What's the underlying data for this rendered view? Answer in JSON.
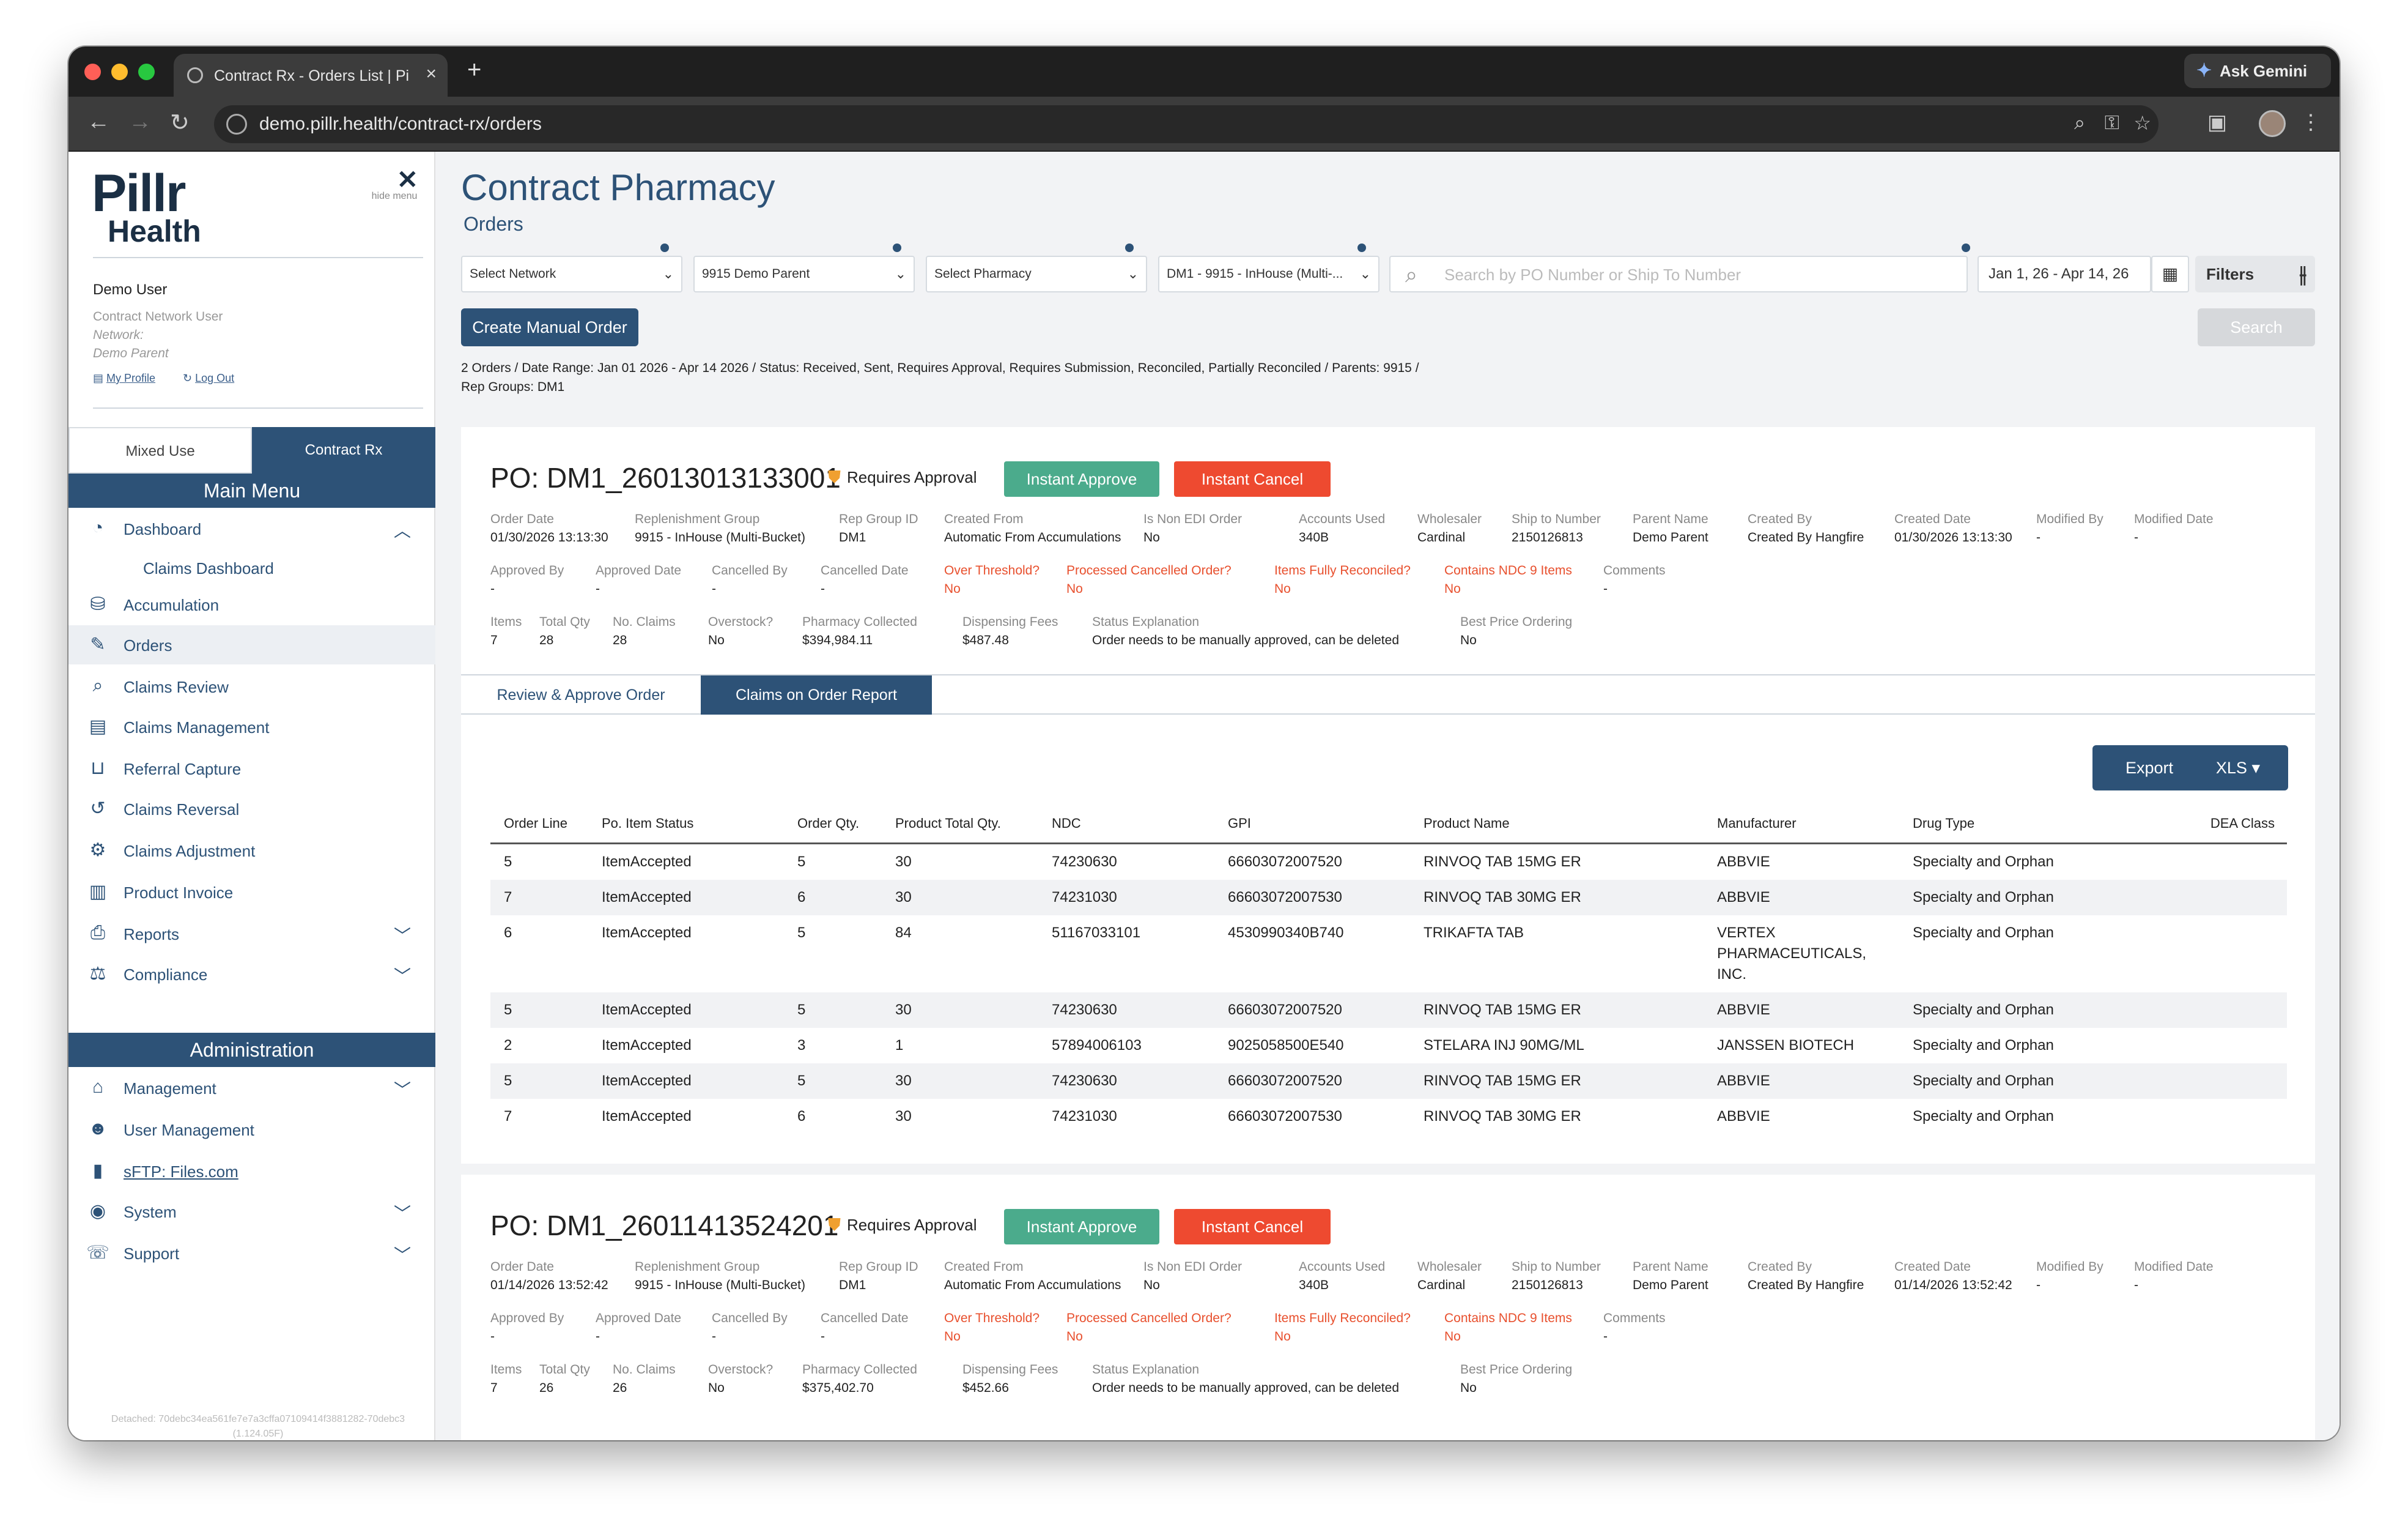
{
  "browser": {
    "tab_title": "Contract Rx - Orders List | Pillr",
    "url": "demo.pillr.health/contract-rx/orders",
    "gemini_label": "Ask Gemini"
  },
  "sidebar": {
    "logo_line1": "Pillr",
    "logo_line2": "Health",
    "hide_menu": "hide menu",
    "user_name": "Demo User",
    "user_role": "Contract Network User",
    "user_network": "Network:",
    "user_parent": "Demo Parent",
    "my_profile": "My Profile",
    "log_out": "Log Out",
    "mode_tabs": [
      "Mixed Use",
      "Contract Rx"
    ],
    "main_menu_title": "Main Menu",
    "main_menu": [
      {
        "label": "Dashboard",
        "icon": "dashboard-icon"
      },
      {
        "label": "Claims Dashboard",
        "icon": ""
      },
      {
        "label": "Accumulation",
        "icon": "accumulation-icon"
      },
      {
        "label": "Orders",
        "icon": "orders-icon"
      },
      {
        "label": "Claims Review",
        "icon": "claims-review-icon"
      },
      {
        "label": "Claims Management",
        "icon": "claims-management-icon"
      },
      {
        "label": "Referral Capture",
        "icon": "referral-capture-icon"
      },
      {
        "label": "Claims Reversal",
        "icon": "claims-reversal-icon"
      },
      {
        "label": "Claims Adjustment",
        "icon": "claims-adjustment-icon"
      },
      {
        "label": "Product Invoice",
        "icon": "product-invoice-icon"
      },
      {
        "label": "Reports",
        "icon": "reports-icon"
      },
      {
        "label": "Compliance",
        "icon": "compliance-icon"
      }
    ],
    "admin_title": "Administration",
    "admin_menu": [
      {
        "label": "Management",
        "icon": "management-icon"
      },
      {
        "label": "User Management",
        "icon": "user-management-icon"
      },
      {
        "label": "sFTP: Files.com",
        "icon": "sftp-icon"
      },
      {
        "label": "System",
        "icon": "system-icon"
      },
      {
        "label": "Support",
        "icon": "support-icon"
      }
    ],
    "footer": "Detached: 70debc34ea561fe7e7a3cffa07109414f3881282-70debc3 (1.124.05F)"
  },
  "header": {
    "title": "Contract Pharmacy",
    "subtitle": "Orders"
  },
  "filters": {
    "network": "Select Network",
    "parent": "9915 Demo Parent",
    "pharmacy": "Select Pharmacy",
    "rep_group": "DM1 - 9915 - InHouse (Multi-...",
    "search_placeholder": "Search by PO Number or Ship To Number",
    "date_range": "Jan 1, 26 - Apr 14, 26",
    "filters_label": "Filters",
    "create_label": "Create Manual Order",
    "search_label": "Search"
  },
  "summary": "2 Orders / Date Range: Jan 01 2026 - Apr 14 2026 / Status: Received, Sent, Requires Approval, Requires Submission, Reconciled, Partially Reconciled / Parents: 9915 / Rep Groups: DM1",
  "orders": [
    {
      "po": "PO: DM1_26013013133001",
      "status": "Requires Approval",
      "approve_label": "Instant Approve",
      "cancel_label": "Instant Cancel",
      "row1": [
        {
          "l": "Order Date",
          "v": "01/30/2026 13:13:30"
        },
        {
          "l": "Replenishment Group",
          "v": "9915 - InHouse (Multi-Bucket)"
        },
        {
          "l": "Rep Group ID",
          "v": "DM1"
        },
        {
          "l": "Created From",
          "v": "Automatic From Accumulations"
        },
        {
          "l": "Is Non EDI Order",
          "v": "No"
        },
        {
          "l": "Accounts Used",
          "v": "340B"
        },
        {
          "l": "Wholesaler",
          "v": "Cardinal"
        },
        {
          "l": "Ship to Number",
          "v": "2150126813"
        },
        {
          "l": "Parent Name",
          "v": "Demo Parent"
        },
        {
          "l": "Created By",
          "v": "Created By Hangfire"
        },
        {
          "l": "Created Date",
          "v": "01/30/2026 13:13:30"
        },
        {
          "l": "Modified By",
          "v": "-"
        },
        {
          "l": "Modified Date",
          "v": "-"
        }
      ],
      "row2": [
        {
          "l": "Approved By",
          "v": "-"
        },
        {
          "l": "Approved Date",
          "v": "-"
        },
        {
          "l": "Cancelled By",
          "v": "-"
        },
        {
          "l": "Cancelled Date",
          "v": "-"
        },
        {
          "l": "Over Threshold?",
          "v": "No"
        },
        {
          "l": "Processed Cancelled Order?",
          "v": "No"
        },
        {
          "l": "Items Fully Reconciled?",
          "v": "No"
        },
        {
          "l": "Contains NDC 9 Items",
          "v": "No"
        },
        {
          "l": "Comments",
          "v": "-"
        }
      ],
      "row3": [
        {
          "l": "Items",
          "v": "7"
        },
        {
          "l": "Total Qty",
          "v": "28"
        },
        {
          "l": "No. Claims",
          "v": "28"
        },
        {
          "l": "Overstock?",
          "v": "No"
        },
        {
          "l": "Pharmacy Collected",
          "v": "$394,984.11"
        },
        {
          "l": "Dispensing Fees",
          "v": "$487.48"
        },
        {
          "l": "Status Explanation",
          "v": "Order needs to be manually approved, can be deleted"
        },
        {
          "l": "Best Price Ordering",
          "v": "No"
        }
      ],
      "tabs": [
        "Review & Approve Order",
        "Claims on Order Report"
      ],
      "export_label": "Export",
      "xls_label": "XLS ▾",
      "columns": [
        "Order Line",
        "Po. Item Status",
        "Order Qty.",
        "Product Total Qty.",
        "NDC",
        "GPI",
        "Product Name",
        "Manufacturer",
        "Drug Type",
        "DEA Class"
      ],
      "rows": [
        [
          "5",
          "ItemAccepted",
          "5",
          "30",
          "74230630",
          "66603072007520",
          "RINVOQ TAB 15MG ER",
          "ABBVIE",
          "Specialty and Orphan",
          ""
        ],
        [
          "7",
          "ItemAccepted",
          "6",
          "30",
          "74231030",
          "66603072007530",
          "RINVOQ TAB 30MG ER",
          "ABBVIE",
          "Specialty and Orphan",
          ""
        ],
        [
          "6",
          "ItemAccepted",
          "5",
          "84",
          "51167033101",
          "4530990340B740",
          "TRIKAFTA TAB",
          "VERTEX PHARMACEUTICALS, INC.",
          "Specialty and Orphan",
          ""
        ],
        [
          "5",
          "ItemAccepted",
          "5",
          "30",
          "74230630",
          "66603072007520",
          "RINVOQ TAB 15MG ER",
          "ABBVIE",
          "Specialty and Orphan",
          ""
        ],
        [
          "2",
          "ItemAccepted",
          "3",
          "1",
          "57894006103",
          "9025058500E540",
          "STELARA INJ 90MG/ML",
          "JANSSEN BIOTECH",
          "Specialty and Orphan",
          ""
        ],
        [
          "5",
          "ItemAccepted",
          "5",
          "30",
          "74230630",
          "66603072007520",
          "RINVOQ TAB 15MG ER",
          "ABBVIE",
          "Specialty and Orphan",
          ""
        ],
        [
          "7",
          "ItemAccepted",
          "6",
          "30",
          "74231030",
          "66603072007530",
          "RINVOQ TAB 30MG ER",
          "ABBVIE",
          "Specialty and Orphan",
          ""
        ]
      ]
    },
    {
      "po": "PO: DM1_26011413524201",
      "status": "Requires Approval",
      "approve_label": "Instant Approve",
      "cancel_label": "Instant Cancel",
      "row1": [
        {
          "l": "Order Date",
          "v": "01/14/2026 13:52:42"
        },
        {
          "l": "Replenishment Group",
          "v": "9915 - InHouse (Multi-Bucket)"
        },
        {
          "l": "Rep Group ID",
          "v": "DM1"
        },
        {
          "l": "Created From",
          "v": "Automatic From Accumulations"
        },
        {
          "l": "Is Non EDI Order",
          "v": "No"
        },
        {
          "l": "Accounts Used",
          "v": "340B"
        },
        {
          "l": "Wholesaler",
          "v": "Cardinal"
        },
        {
          "l": "Ship to Number",
          "v": "2150126813"
        },
        {
          "l": "Parent Name",
          "v": "Demo Parent"
        },
        {
          "l": "Created By",
          "v": "Created By Hangfire"
        },
        {
          "l": "Created Date",
          "v": "01/14/2026 13:52:42"
        },
        {
          "l": "Modified By",
          "v": "-"
        },
        {
          "l": "Modified Date",
          "v": "-"
        }
      ],
      "row2": [
        {
          "l": "Approved By",
          "v": "-"
        },
        {
          "l": "Approved Date",
          "v": "-"
        },
        {
          "l": "Cancelled By",
          "v": "-"
        },
        {
          "l": "Cancelled Date",
          "v": "-"
        },
        {
          "l": "Over Threshold?",
          "v": "No"
        },
        {
          "l": "Processed Cancelled Order?",
          "v": "No"
        },
        {
          "l": "Items Fully Reconciled?",
          "v": "No"
        },
        {
          "l": "Contains NDC 9 Items",
          "v": "No"
        },
        {
          "l": "Comments",
          "v": "-"
        }
      ],
      "row3": [
        {
          "l": "Items",
          "v": "7"
        },
        {
          "l": "Total Qty",
          "v": "26"
        },
        {
          "l": "No. Claims",
          "v": "26"
        },
        {
          "l": "Overstock?",
          "v": "No"
        },
        {
          "l": "Pharmacy Collected",
          "v": "$375,402.70"
        },
        {
          "l": "Dispensing Fees",
          "v": "$452.66"
        },
        {
          "l": "Status Explanation",
          "v": "Order needs to be manually approved, can be deleted"
        },
        {
          "l": "Best Price Ordering",
          "v": "No"
        }
      ]
    }
  ]
}
